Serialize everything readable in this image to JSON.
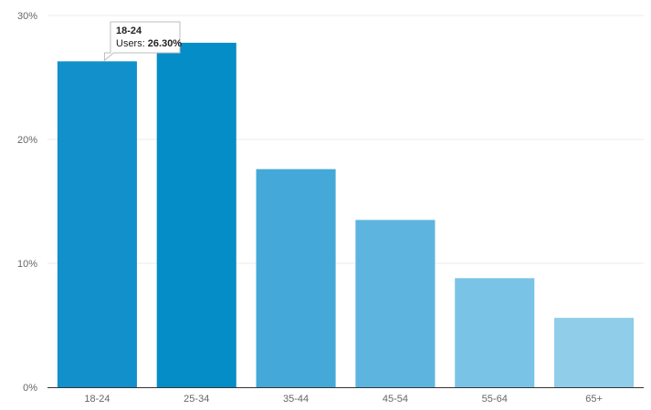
{
  "chart_data": {
    "type": "bar",
    "categories": [
      "18-24",
      "25-34",
      "35-44",
      "45-54",
      "55-64",
      "65+"
    ],
    "series": [
      {
        "values": [
          26.3,
          27.8,
          17.6,
          13.5,
          8.8,
          5.6
        ]
      }
    ],
    "bar_colors": [
      "#1190cb",
      "#058dc7",
      "#44a9d8",
      "#5db5df",
      "#79c3e6",
      "#8fcde9"
    ],
    "ylim": [
      0,
      30
    ],
    "y_ticks": [
      0,
      10,
      20,
      30
    ],
    "y_tick_labels": [
      "0%",
      "10%",
      "20%",
      "30%"
    ],
    "grid": true,
    "title": "",
    "xlabel": "",
    "ylabel": ""
  },
  "tooltip": {
    "category": "18-24",
    "series_label": "Users:",
    "value_text": "26.30%"
  }
}
